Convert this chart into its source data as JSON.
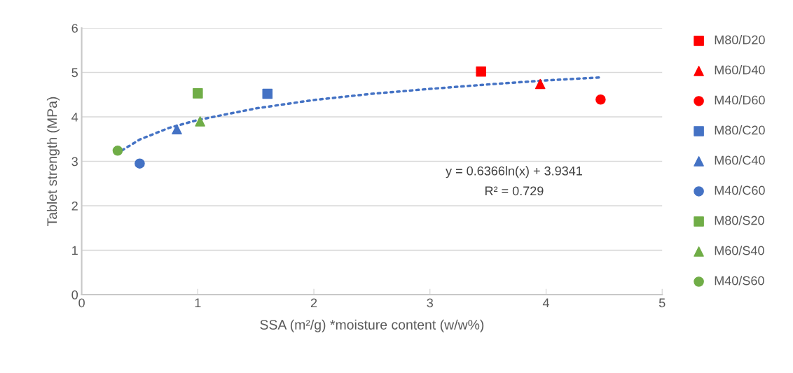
{
  "chart_data": {
    "type": "scatter",
    "xlabel": "SSA (m²/g) *moisture content (w/w%)",
    "ylabel": "Tablet strength (MPa)",
    "xlim": [
      0,
      5
    ],
    "ylim": [
      0,
      6
    ],
    "xticks": [
      0,
      1,
      2,
      3,
      4,
      5
    ],
    "yticks": [
      0,
      1,
      2,
      3,
      4,
      5,
      6
    ],
    "grid": "y",
    "legend": "right",
    "annotations": [
      "y = 0.6366ln(x) + 3.9341",
      "R² = 0.729"
    ],
    "series": [
      {
        "name": "M80/D20",
        "color": "#ff0000",
        "marker": "square",
        "x": [
          3.44
        ],
        "values": [
          5.02
        ]
      },
      {
        "name": "M60/D40",
        "color": "#ff0000",
        "marker": "triangle",
        "x": [
          3.95
        ],
        "values": [
          4.74
        ]
      },
      {
        "name": "M40/D60",
        "color": "#ff0000",
        "marker": "circle",
        "x": [
          4.47
        ],
        "values": [
          4.39
        ]
      },
      {
        "name": "M80/C20",
        "color": "#4472c4",
        "marker": "square",
        "x": [
          1.6
        ],
        "values": [
          4.52
        ]
      },
      {
        "name": "M60/C40",
        "color": "#4472c4",
        "marker": "triangle",
        "x": [
          0.82
        ],
        "values": [
          3.72
        ]
      },
      {
        "name": "M40/C60",
        "color": "#4472c4",
        "marker": "circle",
        "x": [
          0.5
        ],
        "values": [
          2.95
        ]
      },
      {
        "name": "M80/S20",
        "color": "#70ad47",
        "marker": "square",
        "x": [
          1.0
        ],
        "values": [
          4.53
        ]
      },
      {
        "name": "M60/S40",
        "color": "#70ad47",
        "marker": "triangle",
        "x": [
          1.02
        ],
        "values": [
          3.9
        ]
      },
      {
        "name": "M40/S60",
        "color": "#70ad47",
        "marker": "circle",
        "x": [
          0.31
        ],
        "values": [
          3.24
        ]
      },
      {
        "type": "line",
        "color": "#4472c4",
        "line_style": "dotted",
        "marker": "none",
        "x": [
          0.3,
          0.5,
          0.75,
          1,
          1.5,
          2,
          2.5,
          3,
          3.5,
          4,
          4.48
        ],
        "values": [
          3.17,
          3.49,
          3.75,
          3.93,
          4.19,
          4.38,
          4.52,
          4.63,
          4.73,
          4.82,
          4.89
        ]
      }
    ]
  }
}
